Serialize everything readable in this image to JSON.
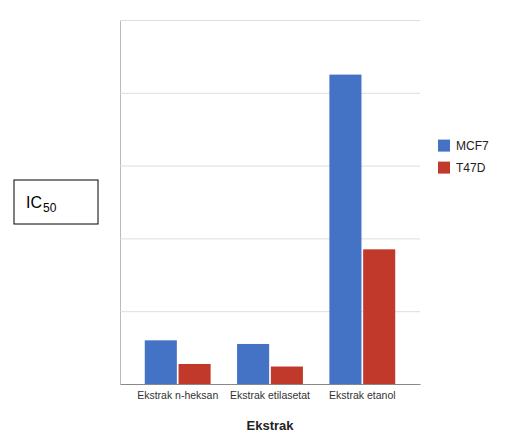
{
  "chart_data": {
    "type": "bar",
    "categories": [
      "Ekstrak n-heksan",
      "Ekstrak etilasetat",
      "Ekstrak etanol"
    ],
    "series": [
      {
        "name": "MCF7",
        "color": "#4472C4",
        "values": [
          120,
          110,
          850
        ]
      },
      {
        "name": "T47D",
        "color": "#C0392B",
        "values": [
          55,
          48,
          370
        ]
      }
    ],
    "xlabel": "Ekstrak",
    "annotations": [
      "IC",
      "50"
    ],
    "ylim": [
      0,
      1000
    ],
    "yticks": [
      0,
      200,
      400,
      600,
      800,
      1000
    ],
    "grid": true,
    "legend": "right",
    "tick_labels": "x"
  }
}
